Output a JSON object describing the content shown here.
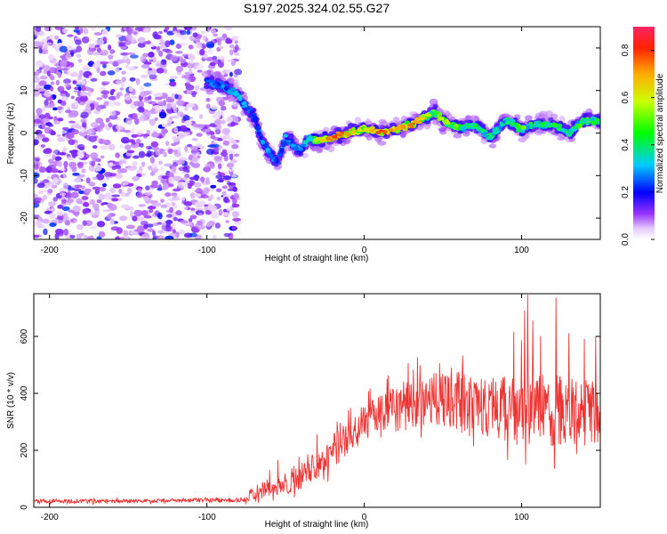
{
  "title": "S197.2025.324.02.55.G27",
  "chart_data": [
    {
      "type": "heatmap",
      "title": "",
      "xlabel": "Height of straight line (km)",
      "ylabel": "Frequency (Hz)",
      "xlim": [
        -210,
        150
      ],
      "ylim": [
        -25,
        25
      ],
      "xticks": [
        -200,
        -100,
        0,
        100
      ],
      "yticks": [
        -20,
        -10,
        0,
        10,
        20
      ],
      "noise_region_x": [
        -210,
        -80
      ],
      "ridge": {
        "x": [
          -100,
          -90,
          -80,
          -75,
          -70,
          -65,
          -60,
          -55,
          -50,
          -45,
          -40,
          -35,
          -30,
          -20,
          -10,
          0,
          10,
          20,
          30,
          40,
          45,
          50,
          60,
          70,
          80,
          90,
          100,
          110,
          120,
          130,
          140,
          150
        ],
        "freq": [
          12,
          11,
          9,
          6,
          4,
          -2,
          -5,
          -7,
          -1,
          -3,
          -4,
          -1,
          -2,
          -1,
          0,
          1,
          0,
          1,
          2,
          4,
          5,
          3,
          1,
          2,
          -1,
          3,
          1,
          2,
          2,
          0,
          3,
          3
        ],
        "amp": [
          0.25,
          0.3,
          0.35,
          0.3,
          0.25,
          0.3,
          0.3,
          0.25,
          0.3,
          0.3,
          0.3,
          0.35,
          0.6,
          0.8,
          0.7,
          0.6,
          0.8,
          0.7,
          0.75,
          0.6,
          0.5,
          0.6,
          0.5,
          0.4,
          0.45,
          0.4,
          0.5,
          0.4,
          0.45,
          0.4,
          0.5,
          0.45
        ]
      },
      "colorbar": {
        "label": "Normalized spectral amplitude",
        "range": [
          0.0,
          0.9
        ],
        "ticks": [
          "0.0",
          "0.2",
          "0.4",
          "0.6",
          "0.8"
        ]
      }
    },
    {
      "type": "line",
      "title": "",
      "xlabel": "Height of straight line (km)",
      "ylabel": "SNR (10 * v/v)",
      "xlim": [
        -210,
        150
      ],
      "ylim": [
        0,
        750
      ],
      "xticks": [
        -200,
        -100,
        0,
        100
      ],
      "yticks": [
        0,
        200,
        400,
        600
      ],
      "series": [
        {
          "name": "SNR",
          "color": "#ee3333",
          "x": [
            -210,
            -180,
            -150,
            -120,
            -90,
            -80,
            -75,
            -70,
            -65,
            -60,
            -55,
            -50,
            -45,
            -40,
            -35,
            -30,
            -25,
            -20,
            -15,
            -10,
            -5,
            0,
            10,
            20,
            30,
            40,
            50,
            60,
            70,
            80,
            90,
            100,
            110,
            120,
            130,
            140,
            150
          ],
          "mean": [
            22,
            22,
            22,
            24,
            26,
            25,
            30,
            45,
            60,
            70,
            65,
            75,
            90,
            110,
            130,
            150,
            175,
            200,
            225,
            250,
            270,
            290,
            320,
            345,
            365,
            380,
            385,
            375,
            365,
            355,
            350,
            345,
            345,
            340,
            340,
            335,
            330
          ],
          "spread": [
            10,
            10,
            10,
            10,
            12,
            12,
            15,
            25,
            40,
            45,
            40,
            45,
            55,
            65,
            75,
            80,
            80,
            85,
            90,
            90,
            95,
            100,
            110,
            120,
            125,
            135,
            140,
            145,
            150,
            155,
            160,
            170,
            180,
            180,
            175,
            170,
            165
          ],
          "peaks": [
            [
              -30,
              255
            ],
            [
              -10,
              340
            ],
            [
              5,
              375
            ],
            [
              25,
              440
            ],
            [
              28,
              505
            ],
            [
              48,
              505
            ],
            [
              95,
              615
            ],
            [
              100,
              585
            ],
            [
              102,
              690
            ],
            [
              104,
              745
            ],
            [
              107,
              655
            ],
            [
              112,
              600
            ],
            [
              122,
              735
            ],
            [
              130,
              610
            ],
            [
              140,
              590
            ],
            [
              147,
              600
            ],
            [
              -55,
              165
            ],
            [
              -60,
              130
            ]
          ]
        }
      ]
    }
  ]
}
